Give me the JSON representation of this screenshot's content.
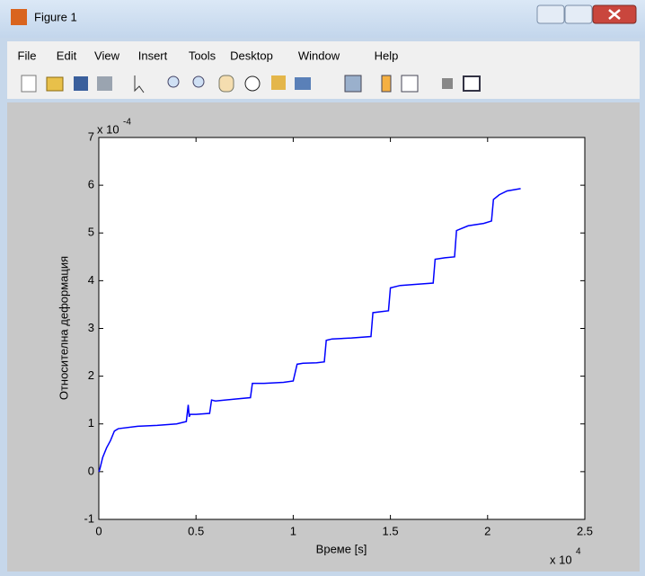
{
  "window": {
    "title": "Figure 1",
    "menu": [
      "File",
      "Edit",
      "View",
      "Insert",
      "Tools",
      "Desktop",
      "Window",
      "Help"
    ]
  },
  "chart_data": {
    "type": "line",
    "xlabel": "Време [s]",
    "ylabel": "Относителна деформация",
    "x_multiplier": "x 10",
    "x_multiplier_exp": "4",
    "y_multiplier": "x 10",
    "y_multiplier_exp": "-4",
    "color": "#0000ff",
    "x": [
      0,
      0.005,
      0.02,
      0.04,
      0.06,
      0.08,
      0.1,
      0.2,
      0.3,
      0.4,
      0.45,
      0.46,
      0.465,
      0.47,
      0.5,
      0.57,
      0.58,
      0.6,
      0.7,
      0.78,
      0.79,
      0.85,
      0.95,
      1.0,
      1.02,
      1.05,
      1.12,
      1.16,
      1.17,
      1.2,
      1.3,
      1.4,
      1.41,
      1.45,
      1.49,
      1.5,
      1.55,
      1.65,
      1.72,
      1.73,
      1.78,
      1.83,
      1.84,
      1.9,
      1.98,
      2.02,
      2.03,
      2.06,
      2.1,
      2.17
    ],
    "values": [
      0,
      0.05,
      0.3,
      0.5,
      0.65,
      0.85,
      0.9,
      0.95,
      0.97,
      1.0,
      1.05,
      1.4,
      1.15,
      1.2,
      1.2,
      1.22,
      1.5,
      1.48,
      1.52,
      1.55,
      1.85,
      1.85,
      1.87,
      1.9,
      2.25,
      2.27,
      2.28,
      2.3,
      2.75,
      2.78,
      2.8,
      2.83,
      3.33,
      3.35,
      3.37,
      3.85,
      3.9,
      3.93,
      3.95,
      4.45,
      4.48,
      4.5,
      5.05,
      5.15,
      5.2,
      5.25,
      5.7,
      5.8,
      5.88,
      5.93
    ],
    "xlim": [
      0,
      2.5
    ],
    "xticks": [
      0,
      0.5,
      1,
      1.5,
      2,
      2.5
    ],
    "ylim": [
      -1,
      7
    ],
    "yticks": [
      -1,
      0,
      1,
      2,
      3,
      4,
      5,
      6,
      7
    ]
  }
}
